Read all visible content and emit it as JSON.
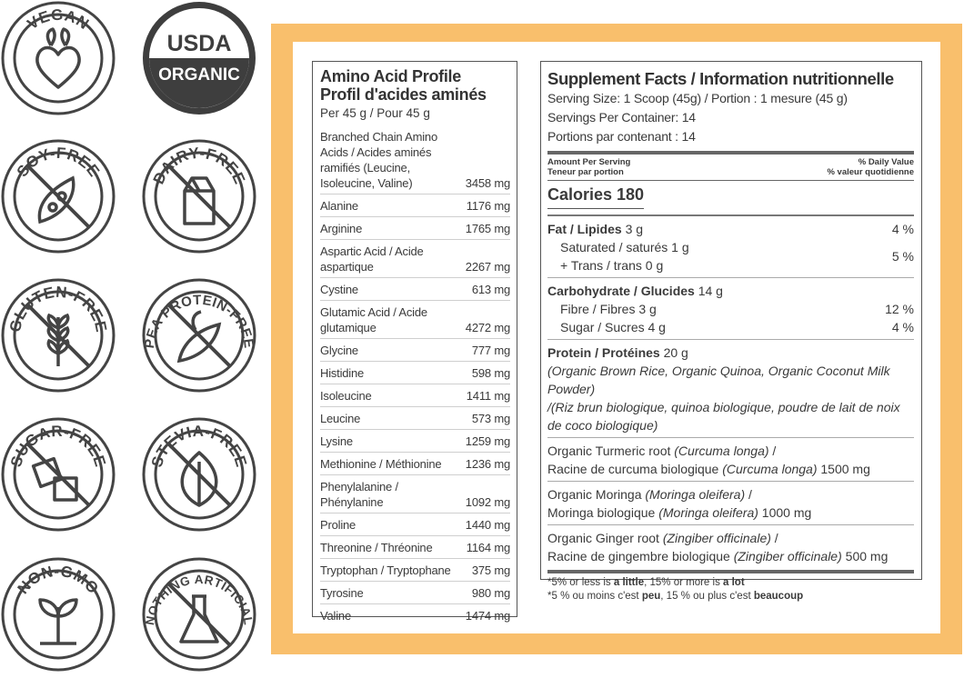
{
  "badges": {
    "vegan": "VEGAN",
    "usda": "USDA",
    "organic": "ORGANIC",
    "soy_free": "SOY-FREE",
    "dairy_free": "DAIRY-FREE",
    "gluten_free": "GLUTEN-FREE",
    "pea_protein_free": "PEA PROTEIN-FREE",
    "sugar_free": "SUGAR-FREE",
    "stevia_free": "STEVIA-FREE",
    "non_gmo": "NON-GMO",
    "nothing_artificial": "NOTHING ARTIFICIAL"
  },
  "amino": {
    "title_en": "Amino Acid Profile",
    "title_fr": "Profil d'acides aminés",
    "per": "Per 45 g / Pour 45 g",
    "rows": [
      {
        "name": "Branched Chain Amino Acids / Acides aminés ramifiés (Leucine, Isoleucine, Valine)",
        "value": "3458 mg"
      },
      {
        "name": "Alanine",
        "value": "1176 mg"
      },
      {
        "name": "Arginine",
        "value": "1765 mg"
      },
      {
        "name": "Aspartic Acid / Acide aspartique",
        "value": "2267 mg"
      },
      {
        "name": "Cystine",
        "value": "613 mg"
      },
      {
        "name": "Glutamic Acid / Acide glutamique",
        "value": "4272 mg"
      },
      {
        "name": "Glycine",
        "value": "777 mg"
      },
      {
        "name": "Histidine",
        "value": "598 mg"
      },
      {
        "name": "Isoleucine",
        "value": "1411 mg"
      },
      {
        "name": "Leucine",
        "value": "573 mg"
      },
      {
        "name": "Lysine",
        "value": "1259 mg"
      },
      {
        "name": "Methionine / Méthionine",
        "value": "1236 mg"
      },
      {
        "name": "Phenylalanine / Phénylanine",
        "value": "1092 mg"
      },
      {
        "name": "Proline",
        "value": "1440 mg"
      },
      {
        "name": "Threonine / Thréonine",
        "value": "1164 mg"
      },
      {
        "name": "Tryptophan / Tryptophane",
        "value": "375 mg"
      },
      {
        "name": "Tyrosine",
        "value": "980 mg"
      },
      {
        "name": "Valine",
        "value": "1474 mg"
      }
    ]
  },
  "supp": {
    "title": "Supplement Facts / Information nutritionnelle",
    "serving_size": "Serving Size: 1 Scoop (45g)  / Portion : 1 mesure (45 g)",
    "servings_per_container": "Servings Per Container: 14",
    "portions_par_contenant": "Portions par contenant : 14",
    "amount_per_serving": "Amount Per Serving",
    "teneur": "Teneur par portion",
    "dv": "% Daily Value",
    "vq": "% valeur quotidienne",
    "calories": "Calories 180",
    "fat_label": "Fat / Lipides",
    "fat_amount": "3 g",
    "fat_dv": "4 %",
    "saturated": "Saturated / saturés  1 g",
    "trans": "+ Trans / trans  0 g",
    "sat_trans_dv": "5 %",
    "carb_label": "Carbohydrate / Glucides",
    "carb_amount": "14 g",
    "fibre": "Fibre / Fibres  3 g",
    "fibre_dv": "12 %",
    "sugar": "Sugar / Sucres  4 g",
    "sugar_dv": "4 %",
    "protein_label": "Protein / Protéines",
    "protein_amount": "20 g",
    "protein_en": "(Organic Brown Rice, Organic Quinoa, Organic Coconut Milk Powder)",
    "protein_fr": "/(Riz brun biologique, quinoa biologique, poudre de lait de noix de coco biologique)",
    "turmeric_1a": "Organic Turmeric root ",
    "turmeric_1b": "(Curcuma longa)",
    "turmeric_1c": " /",
    "turmeric_2a": "Racine de curcuma biologique ",
    "turmeric_2b": "(Curcuma longa)",
    "turmeric_2c": " 1500 mg",
    "moringa_1a": "Organic Moringa ",
    "moringa_1b": "(Moringa oleifera)",
    "moringa_1c": " /",
    "moringa_2a": "Moringa biologique ",
    "moringa_2b": "(Moringa oleifera)",
    "moringa_2c": " 1000 mg",
    "ginger_1a": "Organic Ginger root ",
    "ginger_1b": "(Zingiber officinale)",
    "ginger_1c": " /",
    "ginger_2a": "Racine de gingembre biologique ",
    "ginger_2b": "(Zingiber officinale)",
    "ginger_2c": " 500 mg",
    "foot1_a": "*5% or less is ",
    "foot1_b": "a little",
    "foot1_c": ", 15% or more is ",
    "foot1_d": "a lot",
    "foot2_a": "*5 % ou moins c'est ",
    "foot2_b": "peu",
    "foot2_c": ", 15 % ou plus c'est ",
    "foot2_d": "beaucoup"
  }
}
